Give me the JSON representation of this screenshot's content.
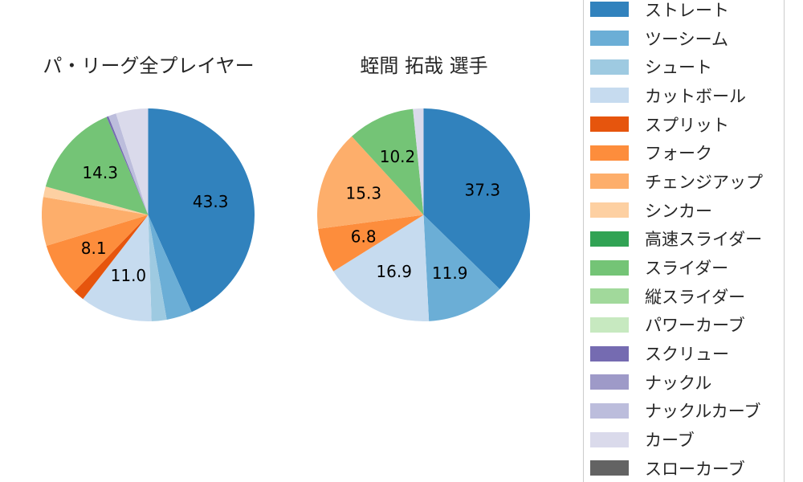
{
  "figure": {
    "background": "#ffffff",
    "text_color": "#262626",
    "legend_border_color": "#cccccc"
  },
  "chart_data": [
    {
      "type": "pie",
      "title": "パ・リーグ全プレイヤー",
      "start_angle": "top",
      "direction": "clockwise",
      "units": "percent",
      "slices": [
        {
          "label": "ストレート",
          "value": 43.3,
          "pct_label": "43.3"
        },
        {
          "label": "ツーシーム",
          "value": 3.9,
          "pct_label": ""
        },
        {
          "label": "シュート",
          "value": 2.3,
          "pct_label": ""
        },
        {
          "label": "カットボール",
          "value": 11.0,
          "pct_label": "11.0"
        },
        {
          "label": "スプリット",
          "value": 1.7,
          "pct_label": ""
        },
        {
          "label": "フォーク",
          "value": 8.1,
          "pct_label": "8.1"
        },
        {
          "label": "チェンジアップ",
          "value": 7.4,
          "pct_label": ""
        },
        {
          "label": "シンカー",
          "value": 1.6,
          "pct_label": ""
        },
        {
          "label": "スライダー",
          "value": 14.3,
          "pct_label": "14.3"
        },
        {
          "label": "スクリュー",
          "value": 0.3,
          "pct_label": ""
        },
        {
          "label": "ナックルカーブ",
          "value": 1.2,
          "pct_label": ""
        },
        {
          "label": "カーブ",
          "value": 4.9,
          "pct_label": ""
        }
      ]
    },
    {
      "type": "pie",
      "title": "蛭間 拓哉 選手",
      "start_angle": "top",
      "direction": "clockwise",
      "units": "percent",
      "slices": [
        {
          "label": "ストレート",
          "value": 37.3,
          "pct_label": "37.3"
        },
        {
          "label": "ツーシーム",
          "value": 11.9,
          "pct_label": "11.9"
        },
        {
          "label": "カットボール",
          "value": 16.9,
          "pct_label": "16.9"
        },
        {
          "label": "フォーク",
          "value": 6.8,
          "pct_label": "6.8"
        },
        {
          "label": "チェンジアップ",
          "value": 15.3,
          "pct_label": "15.3"
        },
        {
          "label": "スライダー",
          "value": 10.2,
          "pct_label": "10.2"
        },
        {
          "label": "カーブ",
          "value": 1.6,
          "pct_label": ""
        }
      ]
    }
  ],
  "legend": {
    "position": "right",
    "items": [
      {
        "label": "ストレート",
        "color": "#3182bd"
      },
      {
        "label": "ツーシーム",
        "color": "#6baed6"
      },
      {
        "label": "シュート",
        "color": "#9ecae1"
      },
      {
        "label": "カットボール",
        "color": "#c6dbef"
      },
      {
        "label": "スプリット",
        "color": "#e6550d"
      },
      {
        "label": "フォーク",
        "color": "#fd8d3c"
      },
      {
        "label": "チェンジアップ",
        "color": "#fdae6b"
      },
      {
        "label": "シンカー",
        "color": "#fdd0a2"
      },
      {
        "label": "高速スライダー",
        "color": "#31a354"
      },
      {
        "label": "スライダー",
        "color": "#74c476"
      },
      {
        "label": "縦スライダー",
        "color": "#a1d99b"
      },
      {
        "label": "パワーカーブ",
        "color": "#c7e9c0"
      },
      {
        "label": "スクリュー",
        "color": "#756bb1"
      },
      {
        "label": "ナックル",
        "color": "#9e9ac8"
      },
      {
        "label": "ナックルカーブ",
        "color": "#bcbddc"
      },
      {
        "label": "カーブ",
        "color": "#dadaeb"
      },
      {
        "label": "スローカーブ",
        "color": "#636363"
      }
    ]
  }
}
